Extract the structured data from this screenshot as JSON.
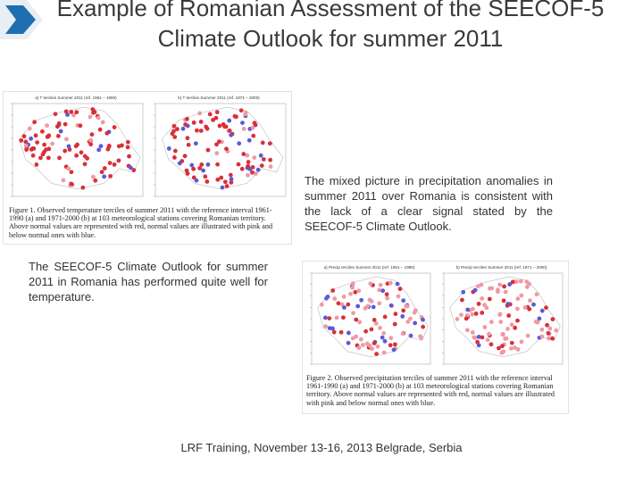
{
  "header": {
    "title": "Example of Romanian Assessment of the SEECOF-5 Climate Outlook for summer 2011"
  },
  "figures": [
    {
      "panels": [
        "a) T terciles Summer 2011 (ref. 1961 – 1990)",
        "b) T terciles Summer 2011 (ref. 1971 – 2000)"
      ],
      "caption": "Figure 1. Observed temperature terciles of summer 2011 with the reference interval 1961-1990 (a) and 1971-2000 (b) at 103 meteorological stations covering Romanian territory. Above normal values are represented with red, normal values are illustrated with pink and below normal ones with blue."
    },
    {
      "panels": [
        "a) Precip terciles Summer 2011 (ref. 1961 – 1990)",
        "b) Precip terciles Summer 2011 (ref. 1971 – 2000)"
      ],
      "caption": "Figure 2. Observed precipitation terciles of summer 2011 with the reference interval 1961-1990 (a) and 1971-2000 (b) at 103 meteorological stations covering Romanian territory. Above normal values are represented with red, normal values are illustrated with pink and below normal ones with blue."
    }
  ],
  "paragraphs": [
    "The mixed picture in precipitation anomalies in summer 2011 over Romania is consistent with the lack of a clear signal stated by the SEECOF-5 Climate Outlook.",
    "The SEECOF-5 Climate Outlook for summer 2011 in Romania has performed quite well for temperature."
  ],
  "footer": "LRF Training, November 13-16, 2013 Belgrade, Serbia"
}
